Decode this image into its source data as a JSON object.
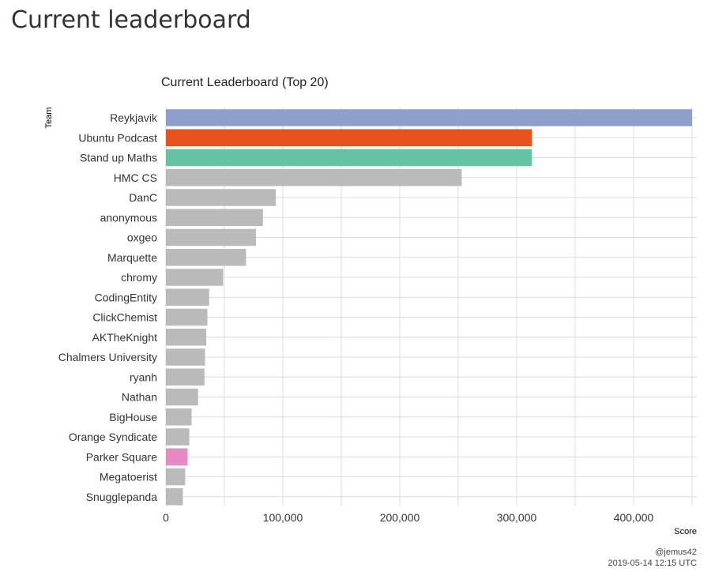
{
  "page": {
    "heading": "Current leaderboard"
  },
  "chart_data": {
    "type": "bar",
    "orientation": "horizontal",
    "title": "Current Leaderboard (Top 20)",
    "xlabel": "Score",
    "ylabel": "Team",
    "xlim": [
      0,
      450000
    ],
    "x_ticks": [
      0,
      100000,
      200000,
      300000,
      400000
    ],
    "x_tick_labels": [
      "0",
      "100,000",
      "200,000",
      "300,000",
      "400,000"
    ],
    "grid": true,
    "categories": [
      "Reykjavik",
      "Ubuntu Podcast",
      "Stand up Maths",
      "HMC CS",
      "DanC",
      "anonymous",
      "oxgeo",
      "Marquette",
      "chromy",
      "CodingEntity",
      "ClickChemist",
      "AKTheKnight",
      "Chalmers University",
      "ryanh",
      "Nathan",
      "BigHouse",
      "Orange Syndicate",
      "Parker Square",
      "Megatoerist",
      "Snugglepanda"
    ],
    "values": [
      450000,
      313000,
      313000,
      253000,
      94000,
      83000,
      77000,
      68500,
      49000,
      37000,
      35500,
      34500,
      33500,
      33000,
      27500,
      22000,
      20000,
      18500,
      16500,
      14500
    ],
    "colors": [
      "#8da0cb",
      "#e8521f",
      "#66c2a5",
      "#bababa",
      "#bababa",
      "#bababa",
      "#bababa",
      "#bababa",
      "#bababa",
      "#bababa",
      "#bababa",
      "#bababa",
      "#bababa",
      "#bababa",
      "#bababa",
      "#bababa",
      "#bababa",
      "#e78ac3",
      "#bababa",
      "#bababa"
    ],
    "caption": [
      "@jemus42",
      "2019-05-14 12:15 UTC"
    ]
  }
}
